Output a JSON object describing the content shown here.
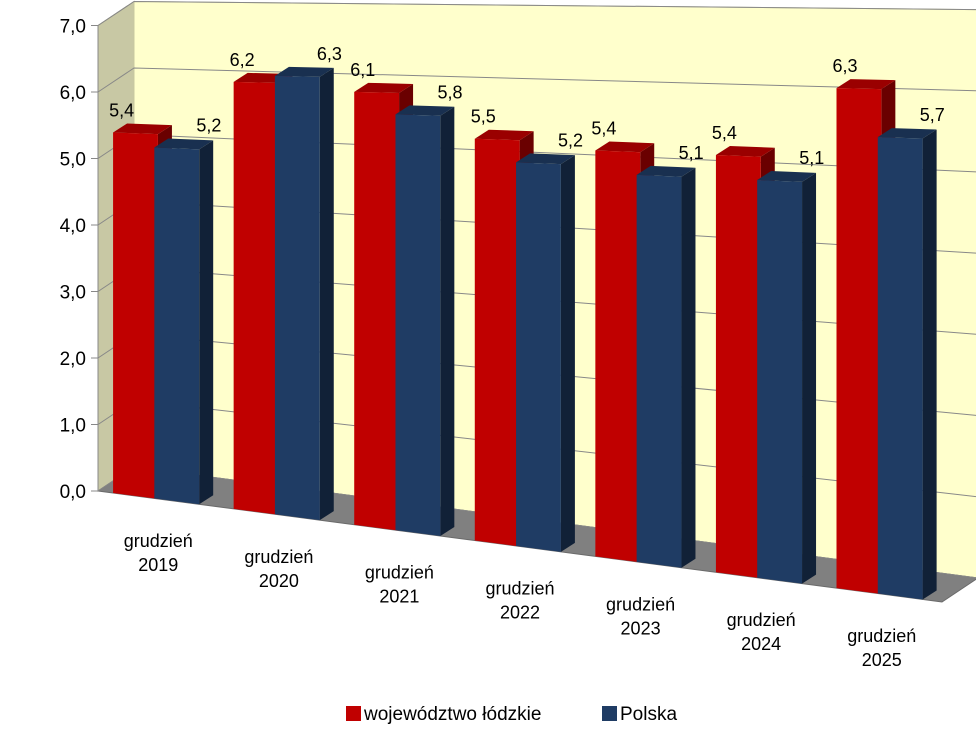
{
  "chart_data": {
    "type": "bar",
    "title": "",
    "xlabel": "",
    "ylabel": "",
    "ylim": [
      0,
      7
    ],
    "yticks": [
      "0,0",
      "1,0",
      "2,0",
      "3,0",
      "4,0",
      "5,0",
      "6,0",
      "7,0"
    ],
    "grid": true,
    "legend_position": "bottom",
    "categories": [
      [
        "grudzień",
        "2019"
      ],
      [
        "grudzień",
        "2020"
      ],
      [
        "grudzień",
        "2021"
      ],
      [
        "grudzień",
        "2022"
      ],
      [
        "grudzień",
        "2023"
      ],
      [
        "grudzień",
        "2024"
      ],
      [
        "grudzień",
        "2025"
      ]
    ],
    "series": [
      {
        "name": "województwo łódzkie",
        "color": "#c00000",
        "values": [
          5.4,
          6.2,
          6.1,
          5.5,
          5.4,
          5.4,
          6.3
        ],
        "labels": [
          "5,4",
          "6,2",
          "6,1",
          "5,5",
          "5,4",
          "5,4",
          "6,3"
        ]
      },
      {
        "name": "Polska",
        "color": "#1f3c64",
        "values": [
          5.2,
          6.3,
          5.8,
          5.2,
          5.1,
          5.1,
          5.7
        ],
        "labels": [
          "5,2",
          "6,3",
          "5,8",
          "5,2",
          "5,1",
          "5,1",
          "5,7"
        ]
      }
    ],
    "colors": {
      "back_wall": "#ffffcc",
      "side_wall": "#c8c8a4",
      "floor": "#808080"
    }
  }
}
